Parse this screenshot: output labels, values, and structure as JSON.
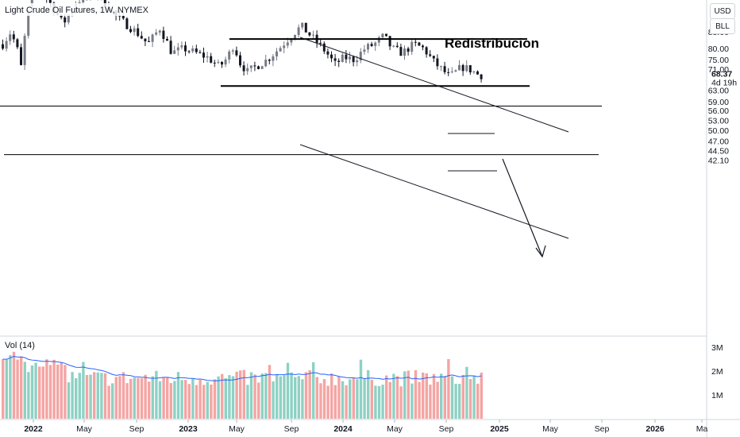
{
  "chart_data": {
    "type": "candlestick",
    "title": "Light Crude Oil Futures, 1W, NYMEX",
    "annotation": "Redistribucion",
    "currency_buttons": [
      "USD",
      "BLL"
    ],
    "price_ticks": [
      "88.00",
      "80.00",
      "75.00",
      "71.00",
      "63.00",
      "59.00",
      "56.00",
      "53.00",
      "50.00",
      "47.00",
      "44.50",
      "42.10"
    ],
    "last_price": "68.37",
    "countdown": "4d 19h",
    "time_ticks": [
      "2022",
      "May",
      "Sep",
      "2023",
      "May",
      "Sep",
      "2024",
      "May",
      "Sep",
      "2025",
      "May",
      "Sep",
      "2026",
      "Ma"
    ],
    "volume": {
      "label": "Vol (14)",
      "ticks": [
        "3M",
        "2M",
        "1M"
      ],
      "bull_color": "#8ed1c4",
      "bear_color": "#f4a5a3",
      "ma_color": "#2962ff"
    },
    "drawn_levels": {
      "range_top": 84.5,
      "range_bottom": 64.5,
      "support_1": 57.5,
      "support_2": 43.5
    },
    "colors": {
      "up": "#787b86",
      "down": "#131722",
      "lines": "#000000",
      "channel": "#131722"
    },
    "grid": false,
    "price_scale": "log",
    "ylim": [
      41.5,
      97
    ]
  }
}
